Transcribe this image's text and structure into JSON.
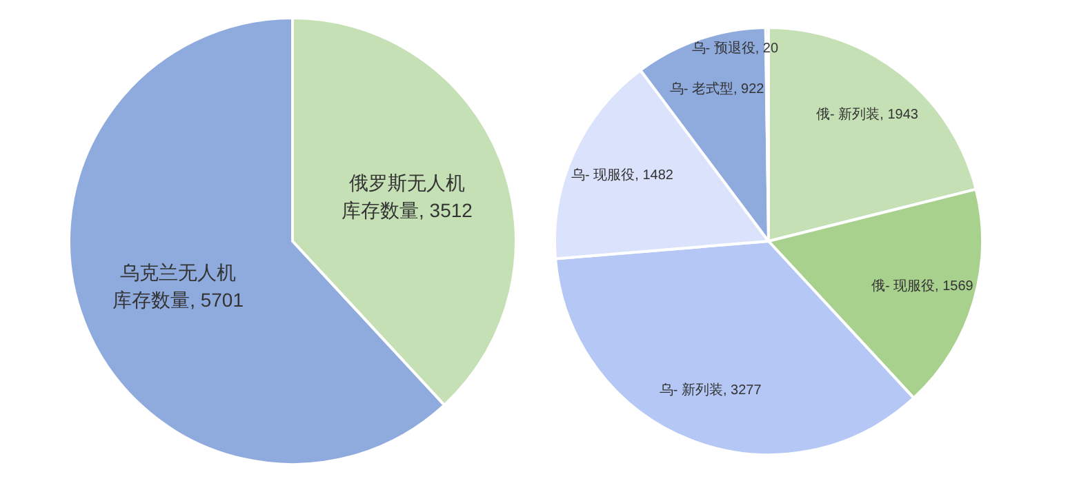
{
  "chart_data": [
    {
      "type": "pie",
      "categories": [
        "俄罗斯无人机库存数量",
        "乌克兰无人机库存数量"
      ],
      "values": [
        3512,
        5701
      ],
      "colors": [
        "#c5e0b4",
        "#8faadc"
      ],
      "value_labels": [
        ", 3512",
        ", 5701"
      ],
      "legend": false
    },
    {
      "type": "pie",
      "categories": [
        "俄- 新列装",
        "俄- 现服役",
        "乌- 新列装",
        "乌- 现服役",
        "乌- 老式型",
        "乌- 预退役"
      ],
      "values": [
        1943,
        1569,
        3277,
        1482,
        922,
        20
      ],
      "colors": [
        "#c5e0b4",
        "#a9d18e",
        "#b4c7f5",
        "#dae3fb",
        "#8faadc",
        "#8faadc"
      ],
      "value_labels": [
        ", 1943",
        ", 1569",
        ", 3277",
        ", 1482",
        ", 922",
        ", 20"
      ],
      "legend": false
    }
  ]
}
